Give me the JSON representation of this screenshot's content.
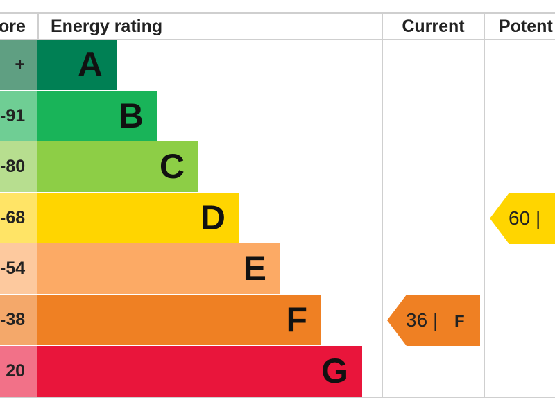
{
  "chart_data": {
    "type": "bar",
    "headers": {
      "score": "ore",
      "rating": "Energy rating",
      "current": "Current",
      "potential": "Potent"
    },
    "bands": [
      {
        "letter": "A",
        "score": "+",
        "color": "#008054",
        "score_color": "#5f9f82"
      },
      {
        "letter": "B",
        "score": "-91",
        "color": "#19b459",
        "score_color": "#6fce94"
      },
      {
        "letter": "C",
        "score": "-80",
        "color": "#8dce46",
        "score_color": "#b7de8f"
      },
      {
        "letter": "D",
        "score": "-68",
        "color": "#ffd500",
        "score_color": "#ffe466"
      },
      {
        "letter": "E",
        "score": "-54",
        "color": "#fcaa65",
        "score_color": "#fdc99e"
      },
      {
        "letter": "F",
        "score": "-38",
        "color": "#ef8023",
        "score_color": "#f4a86a"
      },
      {
        "letter": "G",
        "score": "20",
        "color": "#e9153b",
        "score_color": "#f27188"
      }
    ],
    "current": {
      "value": "36",
      "separator": "|",
      "band": "F",
      "color": "#ef8023"
    },
    "potential": {
      "value": "60",
      "separator": "|",
      "band": "D",
      "color": "#ffd500"
    }
  }
}
